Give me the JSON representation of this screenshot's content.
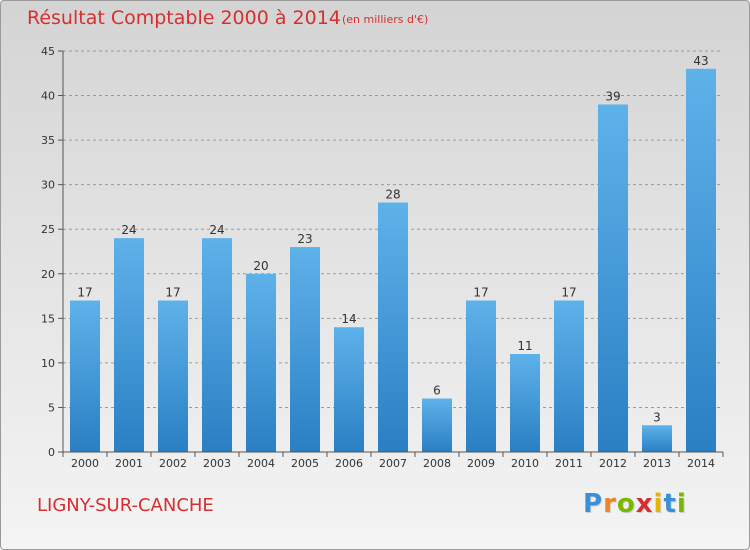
{
  "header": {
    "title": "Résultat Comptable 2000 à 2014",
    "subtitle": "(en milliers d'€)"
  },
  "footer": {
    "commune": "LIGNY-SUR-CANCHE",
    "logo_letters": [
      "P",
      "r",
      "o",
      "x",
      "i",
      "t",
      "i"
    ]
  },
  "colors": {
    "title": "#d43030",
    "bar_light": "#5eb2ea",
    "bar_dark": "#2a7fc4",
    "logo_letters": [
      "#3a8fd6",
      "#e8862a",
      "#7ab800",
      "#d43030",
      "#e8b400",
      "#3a8fd6",
      "#7ab800"
    ]
  },
  "chart_data": {
    "type": "bar",
    "title": "Résultat Comptable 2000 à 2014",
    "subtitle": "(en milliers d'€)",
    "xlabel": "",
    "ylabel": "",
    "categories": [
      "2000",
      "2001",
      "2002",
      "2003",
      "2004",
      "2005",
      "2006",
      "2007",
      "2008",
      "2009",
      "2010",
      "2011",
      "2012",
      "2013",
      "2014"
    ],
    "values": [
      17,
      24,
      17,
      24,
      20,
      23,
      14,
      28,
      6,
      17,
      11,
      17,
      39,
      3,
      43
    ],
    "data_labels": [
      "17",
      "24",
      "17",
      "24",
      "20",
      "23",
      "14",
      "28",
      "6",
      "17",
      "11",
      "17",
      "39",
      "3",
      "43"
    ],
    "ylim": [
      0,
      45
    ],
    "yticks": [
      0,
      5,
      10,
      15,
      20,
      25,
      30,
      35,
      40,
      45
    ],
    "ytick_labels": [
      "0",
      "5",
      "10",
      "15",
      "20",
      "25",
      "30",
      "35",
      "40",
      "45"
    ],
    "grid": "horizontal dashed",
    "legend": "none"
  }
}
